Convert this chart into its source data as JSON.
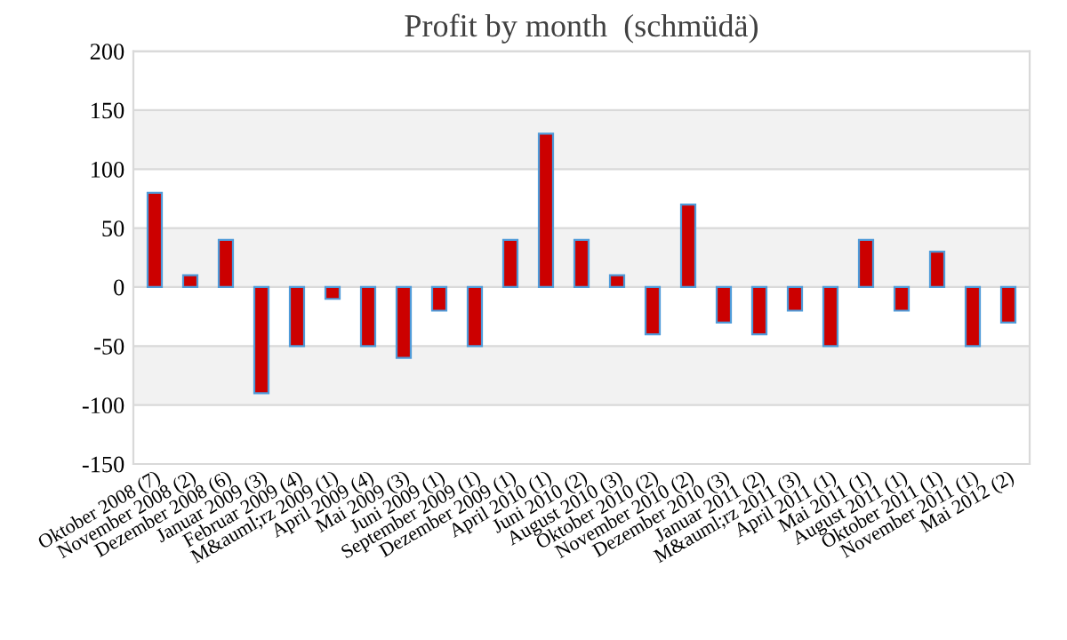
{
  "chart_data": {
    "type": "bar",
    "title": "Profit by month  (schmüdä)",
    "categories": [
      "Oktober 2008 (7)",
      "November 2008 (2)",
      "Dezember 2008 (6)",
      "Januar 2009 (3)",
      "Februar 2009 (4)",
      "M&auml;rz 2009 (1)",
      "April 2009 (4)",
      "Mai 2009 (3)",
      "Juni 2009 (1)",
      "September 2009 (1)",
      "Dezember 2009 (1)",
      "April 2010 (1)",
      "Juni 2010 (2)",
      "August 2010 (3)",
      "Oktober 2010 (2)",
      "November 2010 (2)",
      "Dezember 2010 (3)",
      "Januar 2011 (2)",
      "M&auml;rz 2011 (3)",
      "April 2011 (1)",
      "Mai 2011 (1)",
      "August 2011 (1)",
      "Oktober 2011 (1)",
      "November 2011 (1)",
      "Mai 2012 (2)"
    ],
    "values": [
      80,
      10,
      40,
      -90,
      -50,
      -10,
      -50,
      -60,
      -20,
      -50,
      40,
      130,
      40,
      10,
      -40,
      70,
      -30,
      -40,
      -20,
      -50,
      40,
      -20,
      30,
      -50,
      -30
    ],
    "color": "#cc0000",
    "ylim": [
      -150,
      200
    ],
    "yticks": [
      -150,
      -100,
      -50,
      0,
      50,
      100,
      150,
      200
    ],
    "grid": "y",
    "bands": [
      {
        "axis": "y",
        "from": 100,
        "to": 150,
        "color": "#f2f2f2"
      },
      {
        "axis": "y",
        "from": 0,
        "to": 50,
        "color": "#f2f2f2"
      },
      {
        "axis": "y",
        "from": -100,
        "to": -50,
        "color": "#f2f2f2"
      }
    ]
  }
}
